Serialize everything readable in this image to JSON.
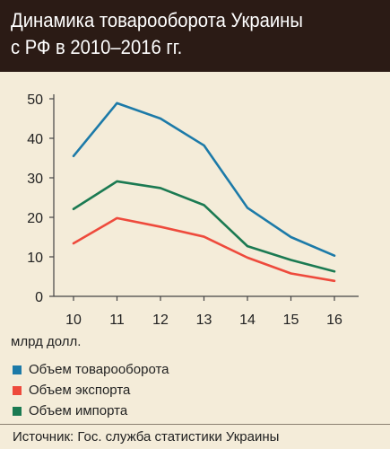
{
  "header": {
    "title_line1": "Динамика товарооборота Украины",
    "title_line2": "с РФ в 2010–2016 гг."
  },
  "unit_label": "млрд долл.",
  "source": "Источник: Гос. служба статистики Украины",
  "colors": {
    "header_bg": "#2b1b15",
    "background": "#f4ecd9",
    "turnover": "#1c7aa8",
    "export": "#ee4a3c",
    "import": "#1b7a52"
  },
  "chart_data": {
    "type": "line",
    "x": [
      "10",
      "11",
      "12",
      "13",
      "14",
      "15",
      "16"
    ],
    "ylim": [
      0,
      50
    ],
    "yticks": [
      0,
      10,
      20,
      30,
      40,
      50
    ],
    "grid": false,
    "series": [
      {
        "name": "Объем товарооборота",
        "color": "#1c7aa8",
        "values": [
          35.5,
          48.9,
          45.0,
          38.2,
          22.4,
          15.0,
          10.3
        ]
      },
      {
        "name": "Объем экспорта",
        "color": "#ee4a3c",
        "values": [
          13.4,
          19.8,
          17.6,
          15.1,
          9.8,
          5.8,
          3.9
        ]
      },
      {
        "name": "Объем импорта",
        "color": "#1b7a52",
        "values": [
          22.1,
          29.1,
          27.4,
          23.1,
          12.7,
          9.2,
          6.3
        ]
      }
    ]
  }
}
